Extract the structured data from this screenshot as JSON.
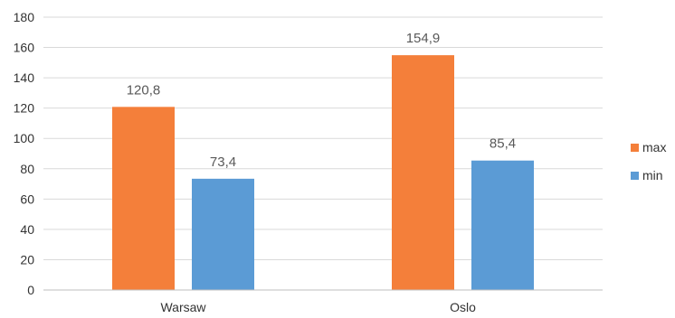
{
  "chart_data": {
    "type": "bar",
    "categories": [
      "Warsaw",
      "Oslo"
    ],
    "series": [
      {
        "name": "max",
        "values": [
          120.8,
          154.9
        ],
        "labels": [
          "120,8",
          "154,9"
        ],
        "color": "#f47f3a"
      },
      {
        "name": "min",
        "values": [
          73.4,
          85.4
        ],
        "labels": [
          "73,4",
          "85,4"
        ],
        "color": "#5b9bd5"
      }
    ],
    "y_ticks": [
      "0",
      "20",
      "40",
      "60",
      "80",
      "100",
      "120",
      "140",
      "160",
      "180"
    ],
    "ylim": [
      0,
      180
    ],
    "grid": true,
    "legend_position": "right"
  }
}
